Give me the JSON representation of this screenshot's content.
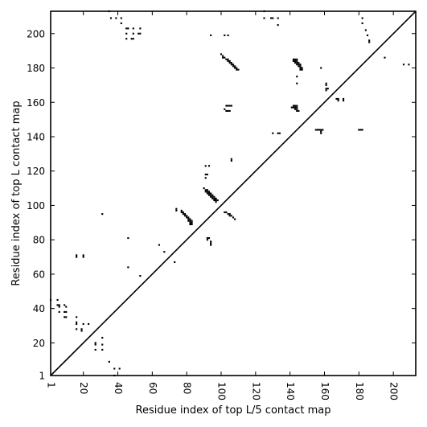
{
  "chart_data": {
    "type": "scatter",
    "title": "",
    "xlabel": "Residue index of top L/5 contact map",
    "ylabel": "Residue index of top L contact map",
    "xlim": [
      1,
      213
    ],
    "ylim": [
      1,
      213
    ],
    "xticks": [
      1,
      20,
      40,
      60,
      80,
      100,
      120,
      140,
      160,
      180,
      200
    ],
    "yticks": [
      1,
      20,
      40,
      60,
      80,
      100,
      120,
      140,
      160,
      180,
      200
    ],
    "xtick_rotation": -90,
    "diagonal": {
      "from": [
        1,
        1
      ],
      "to": [
        213,
        213
      ]
    },
    "marker": "square",
    "color": "#000000",
    "series": [
      {
        "region": "upper-left",
        "points": [
          [
            35,
            213
          ],
          [
            36,
            209
          ],
          [
            39,
            209
          ],
          [
            42,
            209
          ],
          [
            42,
            206
          ],
          [
            45,
            203
          ],
          [
            46,
            203
          ],
          [
            49,
            203
          ],
          [
            53,
            203
          ],
          [
            45,
            200
          ],
          [
            49,
            200
          ],
          [
            52,
            200
          ],
          [
            53,
            200
          ],
          [
            45,
            197
          ],
          [
            48,
            197
          ],
          [
            49,
            197
          ],
          [
            94,
            199
          ],
          [
            102,
            199
          ],
          [
            104,
            199
          ],
          [
            125,
            213
          ],
          [
            125,
            209
          ],
          [
            129,
            209
          ],
          [
            130,
            209
          ],
          [
            133,
            209
          ],
          [
            133,
            205
          ],
          [
            100,
            188
          ],
          [
            101,
            187
          ],
          [
            101,
            186
          ],
          [
            102,
            186
          ],
          [
            103,
            185
          ],
          [
            104,
            185
          ],
          [
            104,
            184
          ],
          [
            105,
            184
          ],
          [
            105,
            183
          ],
          [
            106,
            183
          ],
          [
            106,
            182
          ],
          [
            107,
            182
          ],
          [
            107,
            181
          ],
          [
            108,
            181
          ],
          [
            108,
            180
          ],
          [
            109,
            180
          ],
          [
            109,
            179
          ],
          [
            110,
            179
          ],
          [
            142,
            185
          ],
          [
            143,
            185
          ],
          [
            144,
            185
          ],
          [
            142,
            184
          ],
          [
            143,
            184
          ],
          [
            144,
            184
          ],
          [
            143,
            183
          ],
          [
            144,
            183
          ],
          [
            145,
            183
          ],
          [
            144,
            182
          ],
          [
            145,
            182
          ],
          [
            146,
            182
          ],
          [
            145,
            181
          ],
          [
            146,
            181
          ],
          [
            146,
            180
          ],
          [
            147,
            180
          ],
          [
            146,
            179
          ],
          [
            147,
            179
          ],
          [
            144,
            175
          ],
          [
            144,
            171
          ],
          [
            158,
            180
          ],
          [
            103,
            158
          ],
          [
            104,
            158
          ],
          [
            105,
            158
          ],
          [
            106,
            158
          ],
          [
            102,
            156
          ],
          [
            103,
            155
          ],
          [
            104,
            155
          ],
          [
            105,
            155
          ],
          [
            142,
            158
          ],
          [
            143,
            158
          ],
          [
            144,
            158
          ],
          [
            141,
            157
          ],
          [
            142,
            157
          ],
          [
            143,
            157
          ],
          [
            144,
            157
          ],
          [
            143,
            156
          ],
          [
            144,
            156
          ],
          [
            144,
            155
          ],
          [
            145,
            155
          ],
          [
            161,
            171
          ],
          [
            161,
            170
          ],
          [
            161,
            168
          ],
          [
            162,
            168
          ],
          [
            161,
            167
          ],
          [
            167,
            162
          ],
          [
            168,
            162
          ],
          [
            171,
            162
          ],
          [
            171,
            161
          ],
          [
            168,
            161
          ],
          [
            130,
            142
          ],
          [
            133,
            142
          ],
          [
            134,
            142
          ],
          [
            155,
            144
          ],
          [
            156,
            144
          ],
          [
            157,
            144
          ],
          [
            158,
            144
          ],
          [
            159,
            144
          ],
          [
            158,
            143
          ],
          [
            158,
            142
          ],
          [
            180,
            144
          ],
          [
            181,
            144
          ],
          [
            182,
            144
          ],
          [
            182,
            209
          ],
          [
            182,
            206
          ],
          [
            184,
            202
          ],
          [
            185,
            199
          ],
          [
            186,
            196
          ],
          [
            186,
            195
          ],
          [
            195,
            186
          ],
          [
            206,
            182
          ],
          [
            209,
            182
          ],
          [
            106,
            127
          ],
          [
            106,
            126
          ],
          [
            91,
            123
          ],
          [
            93,
            123
          ],
          [
            91,
            118
          ],
          [
            92,
            118
          ],
          [
            91,
            116
          ],
          [
            90,
            110
          ],
          [
            91,
            109
          ],
          [
            92,
            109
          ],
          [
            91,
            108
          ],
          [
            92,
            108
          ],
          [
            93,
            108
          ],
          [
            92,
            107
          ],
          [
            93,
            107
          ],
          [
            94,
            107
          ],
          [
            93,
            106
          ],
          [
            94,
            106
          ],
          [
            95,
            106
          ],
          [
            94,
            105
          ],
          [
            95,
            105
          ],
          [
            96,
            105
          ],
          [
            95,
            104
          ],
          [
            96,
            104
          ],
          [
            97,
            104
          ],
          [
            96,
            103
          ],
          [
            97,
            103
          ],
          [
            98,
            103
          ],
          [
            97,
            102
          ],
          [
            102,
            96
          ],
          [
            103,
            96
          ],
          [
            104,
            95
          ],
          [
            105,
            95
          ],
          [
            105,
            94
          ],
          [
            106,
            94
          ],
          [
            107,
            93
          ],
          [
            108,
            92
          ],
          [
            74,
            98
          ],
          [
            74,
            97
          ],
          [
            77,
            97
          ],
          [
            77,
            96
          ],
          [
            78,
            96
          ],
          [
            78,
            95
          ],
          [
            79,
            95
          ],
          [
            79,
            94
          ],
          [
            80,
            94
          ],
          [
            80,
            93
          ],
          [
            81,
            93
          ],
          [
            81,
            92
          ],
          [
            82,
            92
          ],
          [
            81,
            91
          ],
          [
            82,
            91
          ],
          [
            83,
            91
          ],
          [
            82,
            90
          ],
          [
            83,
            90
          ],
          [
            82,
            89
          ],
          [
            83,
            89
          ],
          [
            92,
            81
          ],
          [
            93,
            81
          ],
          [
            92,
            80
          ],
          [
            94,
            79
          ],
          [
            94,
            78
          ],
          [
            94,
            77
          ],
          [
            31,
            95
          ],
          [
            46,
            81
          ],
          [
            64,
            77
          ],
          [
            67,
            73
          ],
          [
            73,
            67
          ],
          [
            46,
            64
          ],
          [
            53,
            59
          ]
        ]
      },
      {
        "region": "lower-right",
        "points": [
          [
            1,
            45
          ],
          [
            5,
            45
          ],
          [
            5,
            42
          ],
          [
            6,
            42
          ],
          [
            9,
            42
          ],
          [
            6,
            41
          ],
          [
            10,
            41
          ],
          [
            9,
            38
          ],
          [
            10,
            38
          ],
          [
            6,
            38
          ],
          [
            9,
            35
          ],
          [
            10,
            35
          ],
          [
            16,
            71
          ],
          [
            16,
            70
          ],
          [
            20,
            71
          ],
          [
            20,
            70
          ],
          [
            16,
            35
          ],
          [
            16,
            32
          ],
          [
            16,
            31
          ],
          [
            20,
            31
          ],
          [
            23,
            31
          ],
          [
            16,
            28
          ],
          [
            19,
            28
          ],
          [
            19,
            27
          ],
          [
            27,
            20
          ],
          [
            27,
            19
          ],
          [
            27,
            16
          ],
          [
            31,
            23
          ],
          [
            31,
            19
          ],
          [
            31,
            16
          ],
          [
            35,
            9
          ],
          [
            38,
            5
          ],
          [
            41,
            5
          ],
          [
            38,
            1
          ]
        ]
      }
    ]
  }
}
